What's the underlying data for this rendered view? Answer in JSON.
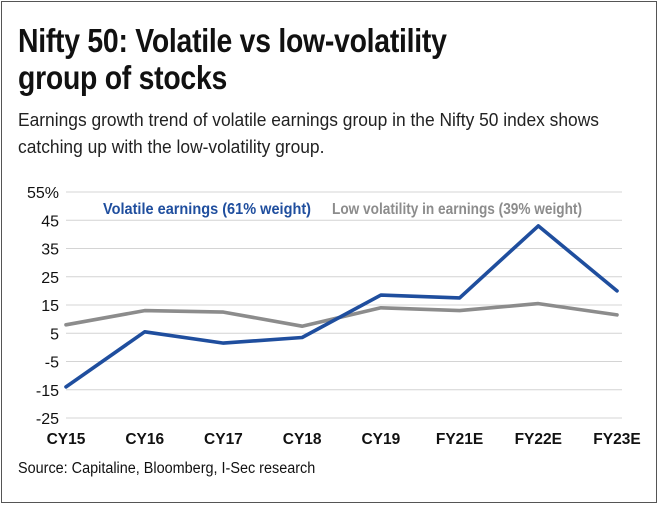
{
  "header": {
    "title_line1": "Nifty 50: Volatile vs low-volatility",
    "title_line2": "group of stocks",
    "subtitle_line1": "Earnings growth trend of volatile earnings group in the Nifty 50 index shows",
    "subtitle_line2": "catching up with the low-volatility group."
  },
  "footer": {
    "source": "Source: Capitaline, Bloomberg, I-Sec research"
  },
  "chart_data": {
    "type": "line",
    "categories": [
      "CY15",
      "CY16",
      "CY17",
      "CY18",
      "CY19",
      "FY21E",
      "FY22E",
      "FY23E"
    ],
    "series": [
      {
        "name": "Volatile earnings (61% weight)",
        "color": "#1f4e9e",
        "values": [
          -14,
          5.5,
          1.5,
          3.5,
          18.5,
          17.5,
          43,
          20
        ]
      },
      {
        "name": "Low volatility in earnings (39% weight)",
        "color": "#8c8c8c",
        "values": [
          8,
          13,
          12.5,
          7.5,
          14,
          13,
          15.5,
          11.5
        ]
      }
    ],
    "yticks": [
      "55%",
      "45",
      "35",
      "25",
      "15",
      "5",
      "-5",
      "-15",
      "-25"
    ],
    "ylim": [
      -25,
      55
    ],
    "grid": true,
    "legend": "inline-top"
  }
}
